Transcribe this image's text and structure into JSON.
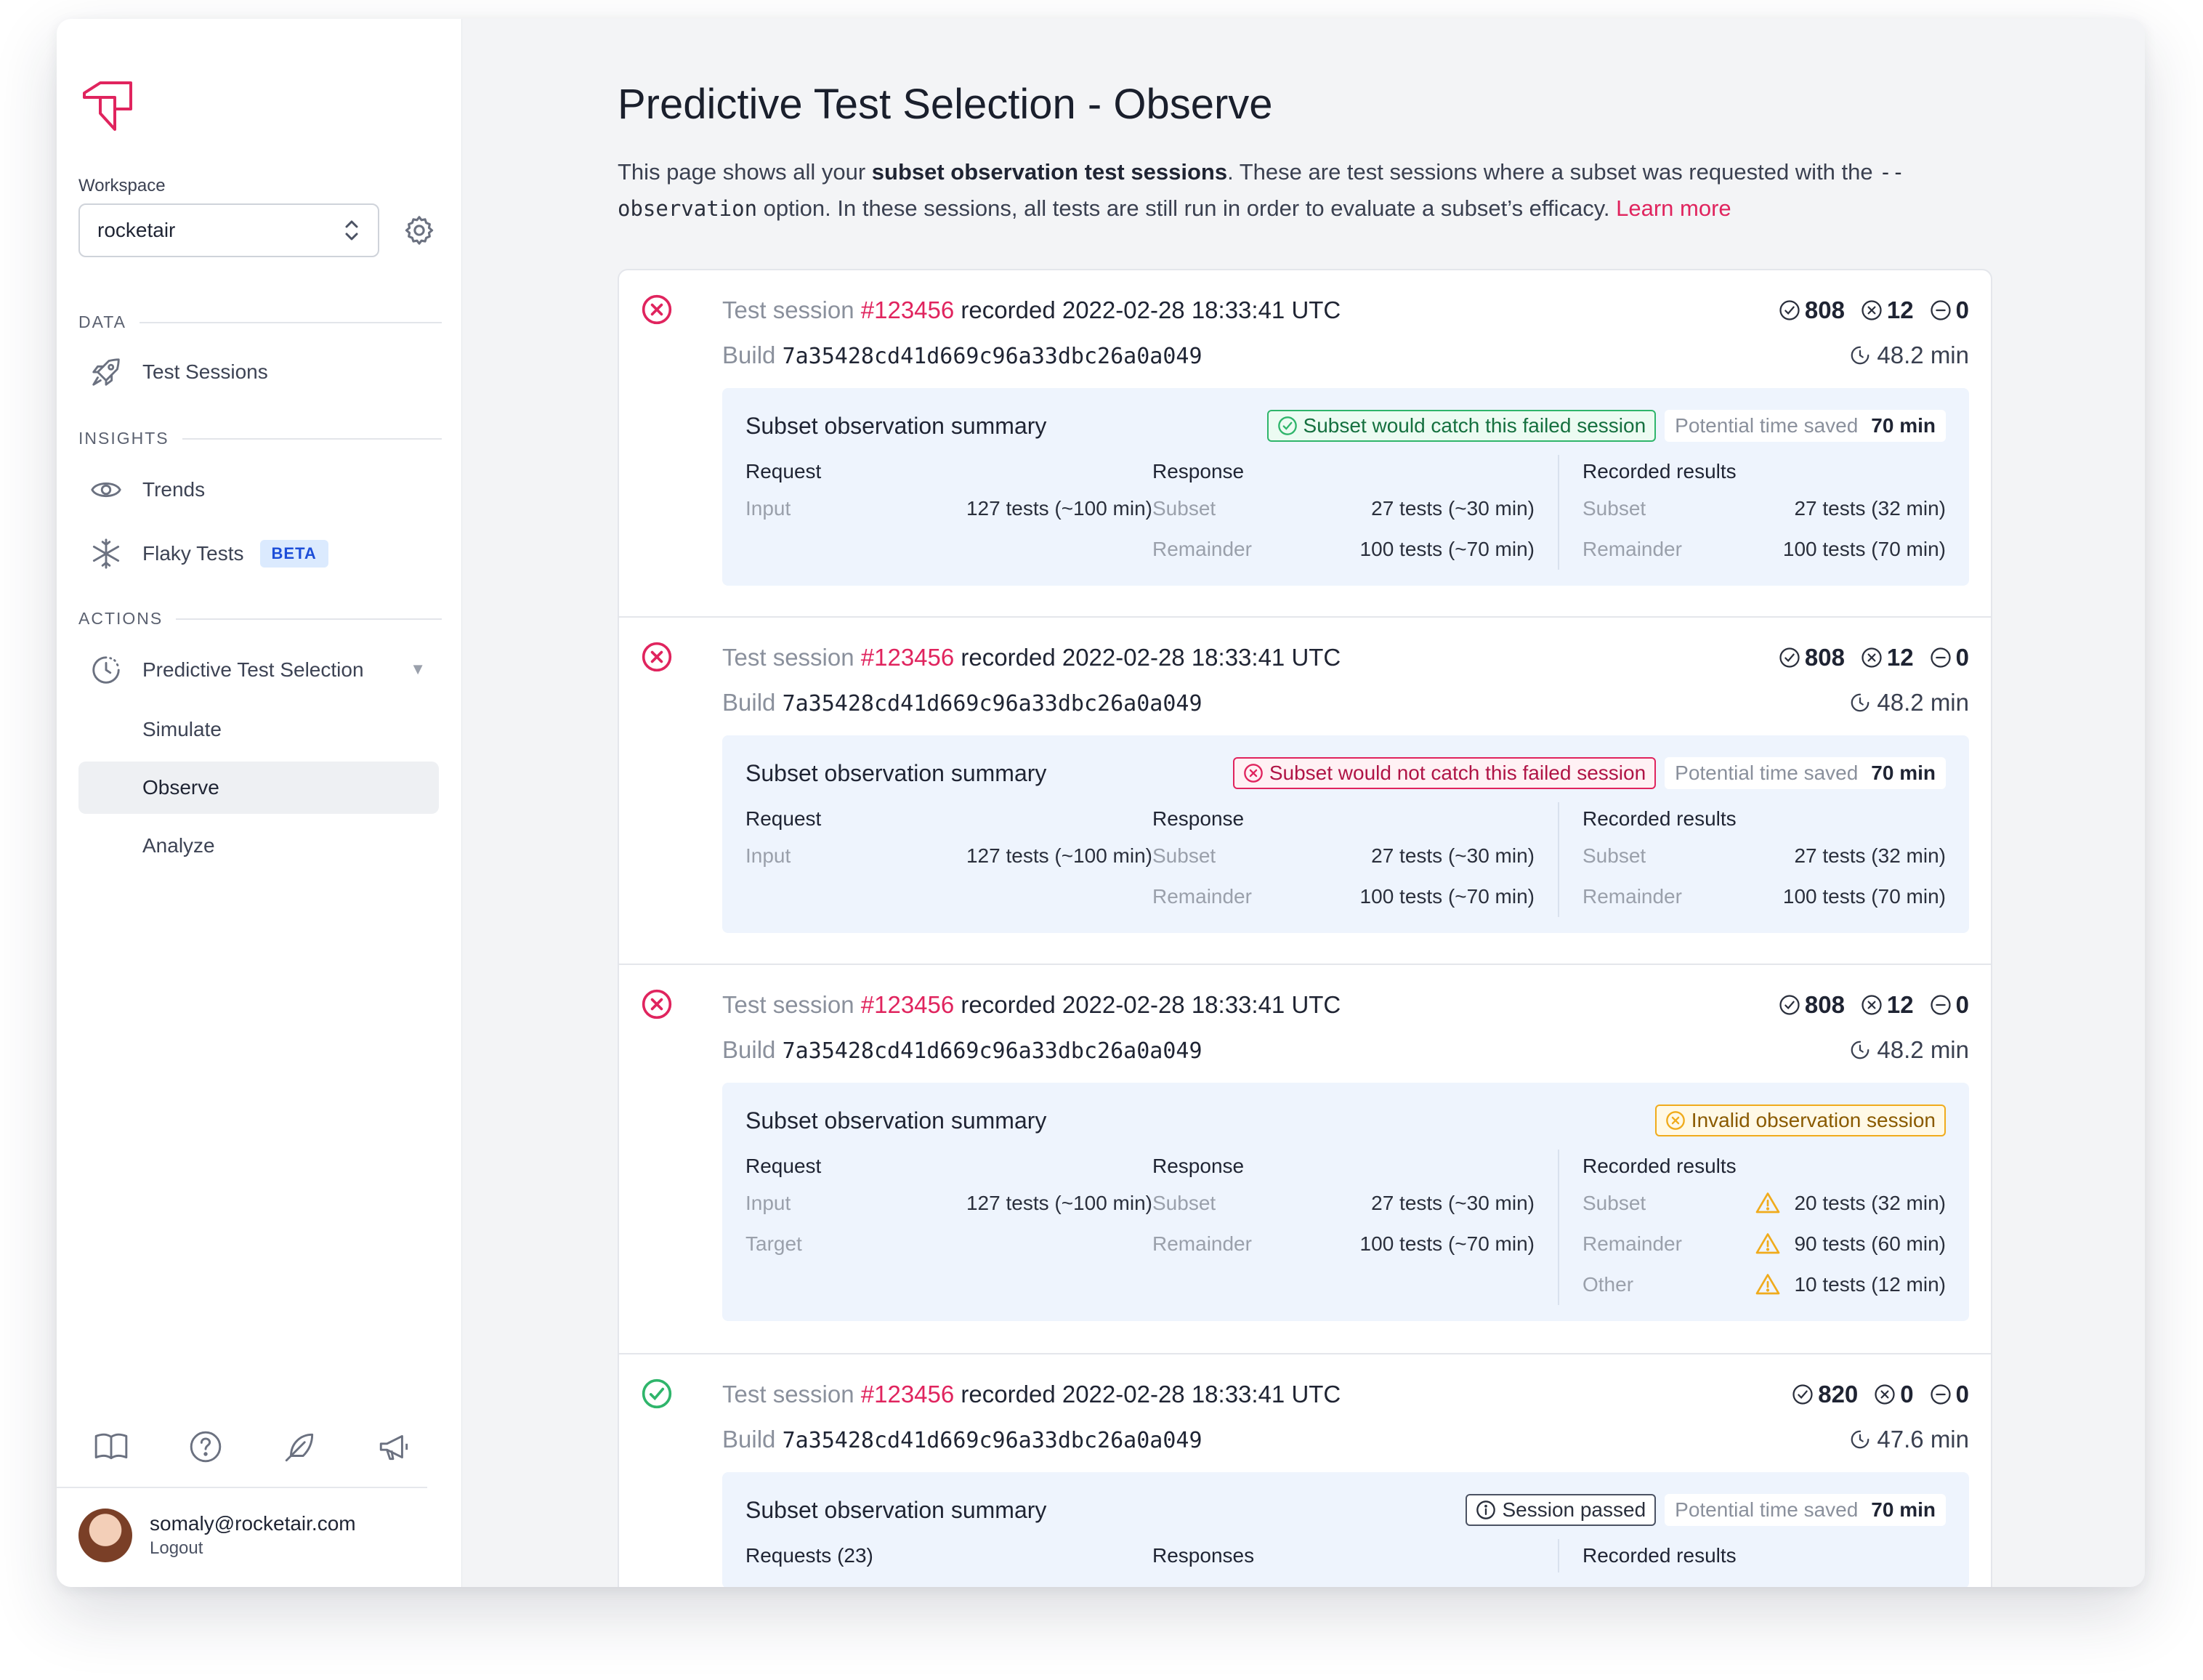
{
  "sidebar": {
    "workspace_label": "Workspace",
    "workspace_value": "rocketair",
    "sections": {
      "data": "DATA",
      "insights": "INSIGHTS",
      "actions": "ACTIONS"
    },
    "items": {
      "test_sessions": "Test Sessions",
      "trends": "Trends",
      "flaky_tests": "Flaky Tests",
      "beta": "BETA",
      "pts": "Predictive Test Selection",
      "simulate": "Simulate",
      "observe": "Observe",
      "analyze": "Analyze"
    },
    "user": {
      "email": "somaly@rocketair.com",
      "logout": "Logout"
    }
  },
  "page": {
    "title": "Predictive Test Selection - Observe",
    "intro_1": "This page shows all your ",
    "intro_bold": "subset observation test sessions",
    "intro_2": ". These are test sessions where a subset was requested with the ",
    "intro_code": "--observation",
    "intro_3": " option. In these sessions, all tests are still run in order to evaluate a subset’s efficacy. ",
    "intro_link": "Learn more"
  },
  "labels": {
    "test_session": "Test session",
    "recorded": "recorded",
    "build": "Build",
    "summary_title": "Subset observation summary",
    "potential_time_saved": "Potential time saved",
    "request": "Request",
    "response": "Response",
    "recorded_results": "Recorded results",
    "input": "Input",
    "target": "Target",
    "subset": "Subset",
    "remainder": "Remainder",
    "other": "Other"
  },
  "sessions": [
    {
      "status": "failed",
      "number": "#123456",
      "timestamp": "2022-02-28 18:33:41 UTC",
      "build": "7a35428cd41d669c96a33dbc26a0a049",
      "passed": "808",
      "failed": "12",
      "skipped": "0",
      "duration": "48.2 min",
      "badge": "Subset would catch this failed session",
      "time_saved": "70 min",
      "input": "127 tests (~100 min)",
      "resp_subset": "27 tests (~30 min)",
      "resp_remainder": "100 tests (~70 min)",
      "rec_subset": "27 tests (32 min)",
      "rec_remainder": "100 tests (70 min)"
    },
    {
      "status": "failed",
      "number": "#123456",
      "timestamp": "2022-02-28 18:33:41 UTC",
      "build": "7a35428cd41d669c96a33dbc26a0a049",
      "passed": "808",
      "failed": "12",
      "skipped": "0",
      "duration": "48.2 min",
      "badge": "Subset would not catch this failed session",
      "time_saved": "70 min",
      "input": "127 tests (~100 min)",
      "resp_subset": "27 tests (~30 min)",
      "resp_remainder": "100 tests (~70 min)",
      "rec_subset": "27 tests (32 min)",
      "rec_remainder": "100 tests (70 min)"
    },
    {
      "status": "failed",
      "number": "#123456",
      "timestamp": "2022-02-28 18:33:41 UTC",
      "build": "7a35428cd41d669c96a33dbc26a0a049",
      "passed": "808",
      "failed": "12",
      "skipped": "0",
      "duration": "48.2 min",
      "badge": "Invalid observation session",
      "input": "127 tests (~100 min)",
      "resp_subset": "27 tests (~30 min)",
      "resp_remainder": "100 tests (~70 min)",
      "rec_subset": "20 tests (32 min)",
      "rec_remainder": "90 tests (60 min)",
      "rec_other": "10 tests (12 min)"
    },
    {
      "status": "passed",
      "number": "#123456",
      "timestamp": "2022-02-28 18:33:41 UTC",
      "build": "7a35428cd41d669c96a33dbc26a0a049",
      "passed": "820",
      "failed": "0",
      "skipped": "0",
      "duration": "47.6 min",
      "badge": "Session passed",
      "time_saved": "70 min",
      "requests": "Requests (23)",
      "responses": "Responses"
    }
  ],
  "colors": {
    "accent": "#e0245e",
    "success": "#2fb56b",
    "warning": "#f0ab1c"
  }
}
